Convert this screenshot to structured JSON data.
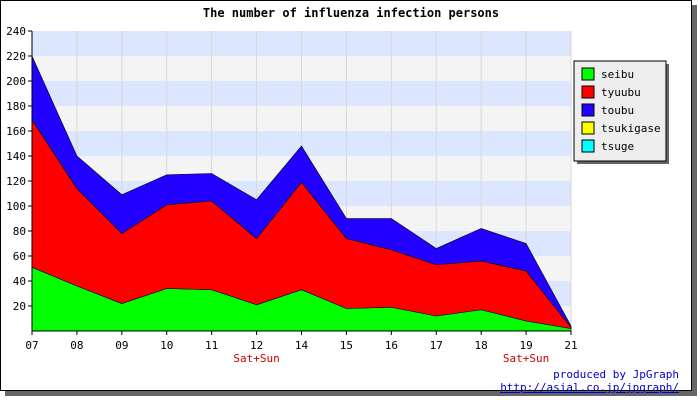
{
  "chart_data": {
    "type": "area",
    "stacked": true,
    "title": "The number of influenza infection persons",
    "xlabel": "",
    "ylabel": "",
    "x": [
      "07",
      "08",
      "09",
      "10",
      "11",
      "12",
      "14",
      "15",
      "16",
      "17",
      "18",
      "19",
      "21"
    ],
    "x_annotations": [
      {
        "x": "12",
        "text": "Sat+Sun"
      },
      {
        "x": "19",
        "text": "Sat+Sun"
      }
    ],
    "ylim": [
      0,
      240
    ],
    "yticks": [
      20,
      40,
      60,
      80,
      100,
      120,
      140,
      160,
      180,
      200,
      220,
      240
    ],
    "grid": "horizontal, alternating bands",
    "legend_position": "top-right",
    "series": [
      {
        "name": "seibu",
        "color": "#00ff00",
        "values": [
          51,
          36,
          22,
          34,
          33,
          21,
          33,
          18,
          19,
          12,
          17,
          8,
          2
        ]
      },
      {
        "name": "tyuubu",
        "color": "#ff0000",
        "values": [
          118,
          78,
          56,
          67,
          71,
          53,
          86,
          56,
          46,
          41,
          39,
          40,
          1
        ]
      },
      {
        "name": "toubu",
        "color": "#2200ff",
        "values": [
          51,
          26,
          31,
          24,
          22,
          31,
          29,
          16,
          25,
          13,
          26,
          22,
          1
        ]
      },
      {
        "name": "tsukigase",
        "color": "#ffff00",
        "values": [
          0,
          0,
          0,
          0,
          0,
          0,
          0,
          0,
          0,
          0,
          0,
          0,
          0
        ]
      },
      {
        "name": "tsuge",
        "color": "#00ffff",
        "values": [
          0,
          0,
          0,
          0,
          0,
          0,
          0,
          0,
          0,
          0,
          0,
          0,
          0
        ]
      }
    ],
    "band_colors": [
      "#f4f4f4",
      "#dde6ff"
    ],
    "annotation_color": "#cc0000"
  },
  "credits": {
    "line1": "produced by JpGraph",
    "line2": "http://asial.co.jp/jpgraph/"
  }
}
